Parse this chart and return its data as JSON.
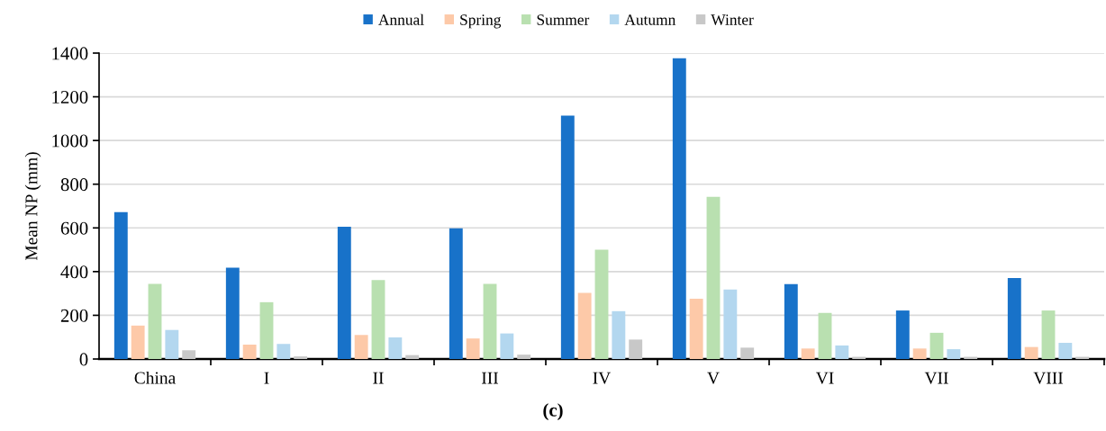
{
  "chart_data": {
    "type": "bar",
    "ylabel": "Mean NP (mm)",
    "annotations": [
      "(c)"
    ],
    "categories": [
      "China",
      "I",
      "II",
      "III",
      "IV",
      "V",
      "VI",
      "VII",
      "VIII"
    ],
    "series": [
      {
        "name": "Annual",
        "color": "#1872c9",
        "values": [
          672,
          418,
          605,
          598,
          1114,
          1376,
          343,
          222,
          371
        ]
      },
      {
        "name": "Spring",
        "color": "#fdc9a8",
        "values": [
          153,
          66,
          110,
          94,
          303,
          276,
          48,
          48,
          55
        ]
      },
      {
        "name": "Summer",
        "color": "#b9e0b0",
        "values": [
          344,
          260,
          361,
          344,
          500,
          742,
          211,
          120,
          222
        ]
      },
      {
        "name": "Autumn",
        "color": "#b3d7ef",
        "values": [
          133,
          69,
          99,
          117,
          219,
          318,
          62,
          45,
          74
        ]
      },
      {
        "name": "Winter",
        "color": "#c8c8c8",
        "values": [
          40,
          12,
          18,
          20,
          89,
          52,
          10,
          10,
          10
        ]
      }
    ],
    "ylim": [
      0,
      1400
    ],
    "yticks": [
      0,
      200,
      400,
      600,
      800,
      1000,
      1200,
      1400
    ],
    "grid": "y",
    "legend": "top"
  }
}
